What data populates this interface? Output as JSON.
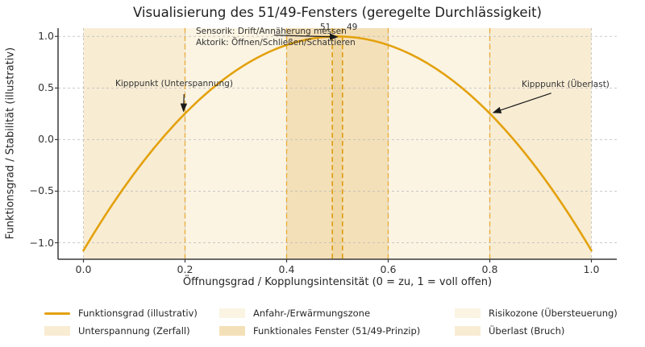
{
  "title": "Visualisierung des 51/49-Fensters (geregelte Durchlässigkeit)",
  "chart_data": {
    "type": "line",
    "title": "Visualisierung des 51/49-Fensters (geregelte Durchlässigkeit)",
    "xlabel": "Öffnungsgrad / Kopplungsintensität (0 = zu, 1 = voll offen)",
    "ylabel": "Funktionsgrad / Stabilität (illustrativ)",
    "xlim": [
      -0.05,
      1.05
    ],
    "ylim": [
      -1.16,
      1.08
    ],
    "xticks": [
      0,
      0.2,
      0.4,
      0.6,
      0.8,
      1
    ],
    "yticks": [
      -1,
      -0.5,
      0,
      0.5,
      1
    ],
    "grid": true,
    "legend_position": "bottom",
    "curve_note": "illustrative parabola y = 1 - 8.3*(x-0.5)^2, peak at x=0.5",
    "series": [
      {
        "name": "Funktionsgrad (illustrativ)",
        "color": "#E3A10C",
        "x": [
          0,
          0.05,
          0.1,
          0.15,
          0.2,
          0.25,
          0.3,
          0.35,
          0.4,
          0.45,
          0.5,
          0.55,
          0.6,
          0.65,
          0.7,
          0.75,
          0.8,
          0.85,
          0.9,
          0.95,
          1
        ],
        "y": [
          -1.075,
          -0.681,
          -0.328,
          -0.017,
          0.253,
          0.481,
          0.668,
          0.813,
          0.917,
          0.979,
          1,
          0.979,
          0.917,
          0.813,
          0.668,
          0.481,
          0.253,
          -0.017,
          -0.328,
          -0.681,
          -1.075
        ]
      }
    ],
    "zones": [
      {
        "name": "Unterspannung (Zerfall)",
        "from": 0.0,
        "to": 0.2,
        "color": "#F8ECD3"
      },
      {
        "name": "Anfahr-/Erwärmungszone",
        "from": 0.2,
        "to": 0.4,
        "color": "#FBF4E3"
      },
      {
        "name": "Funktionales Fenster (51/49-Prinzip)",
        "from": 0.4,
        "to": 0.6,
        "color": "#F4E0B8"
      },
      {
        "name": "Risikozone (Übersteuerung)",
        "from": 0.6,
        "to": 0.8,
        "color": "#FBF4E3"
      },
      {
        "name": "Überlast (Bruch)",
        "from": 0.8,
        "to": 1.0,
        "color": "#F8ECD3"
      },
      {
        "name": "Kernfenster 51/49",
        "from": 0.49,
        "to": 0.51,
        "color": "#F0D8A6"
      }
    ],
    "vlines": [
      {
        "x": 0.2
      },
      {
        "x": 0.4
      },
      {
        "x": 0.49,
        "strong": true
      },
      {
        "x": 0.51,
        "strong": true
      },
      {
        "x": 0.6
      },
      {
        "x": 0.8
      }
    ],
    "annotations": [
      {
        "text": "Sensorik: Drift/Annäherung messen"
      },
      {
        "text": "Aktorik: Öffnen/Schließen/Schattieren"
      },
      {
        "text": "51"
      },
      {
        "text": "49"
      },
      {
        "text": "Kipppunkt (Unterspannung)",
        "points_to": {
          "x": 0.2,
          "y": 0.25
        }
      },
      {
        "text": "Kipppunkt (Überlast)",
        "points_to": {
          "x": 0.8,
          "y": 0.25
        }
      }
    ],
    "arrows": [
      {
        "from": [
          0.375,
          1.012
        ],
        "to": [
          0.5,
          0.995
        ]
      },
      {
        "from": [
          0.198,
          0.44
        ],
        "to": [
          0.197,
          0.275
        ]
      },
      {
        "from": [
          0.921,
          0.45
        ],
        "to": [
          0.807,
          0.262
        ]
      }
    ],
    "colors": {
      "curve": "#E3A10C",
      "vline": "#E9A92E",
      "vline_strong": "#DE9B10",
      "grid": "#b9b9b9",
      "spine": "#3a3a3a",
      "arrow": "#1a1a1a"
    }
  },
  "legend": {
    "items": [
      {
        "label": "Funktionsgrad (illustrativ)",
        "swatch": "line",
        "color": "#E3A10C"
      },
      {
        "label": "Unterspannung (Zerfall)",
        "swatch": "patch",
        "color": "#F8ECD3"
      },
      {
        "label": "Anfahr-/Erwärmungszone",
        "swatch": "patch",
        "color": "#FBF4E3"
      },
      {
        "label": "Funktionales Fenster (51/49-Prinzip)",
        "swatch": "patch",
        "color": "#F4E0B8"
      },
      {
        "label": "Risikozone (Übersteuerung)",
        "swatch": "patch",
        "color": "#FBF4E3"
      },
      {
        "label": "Überlast (Bruch)",
        "swatch": "patch",
        "color": "#F8ECD3"
      }
    ]
  }
}
